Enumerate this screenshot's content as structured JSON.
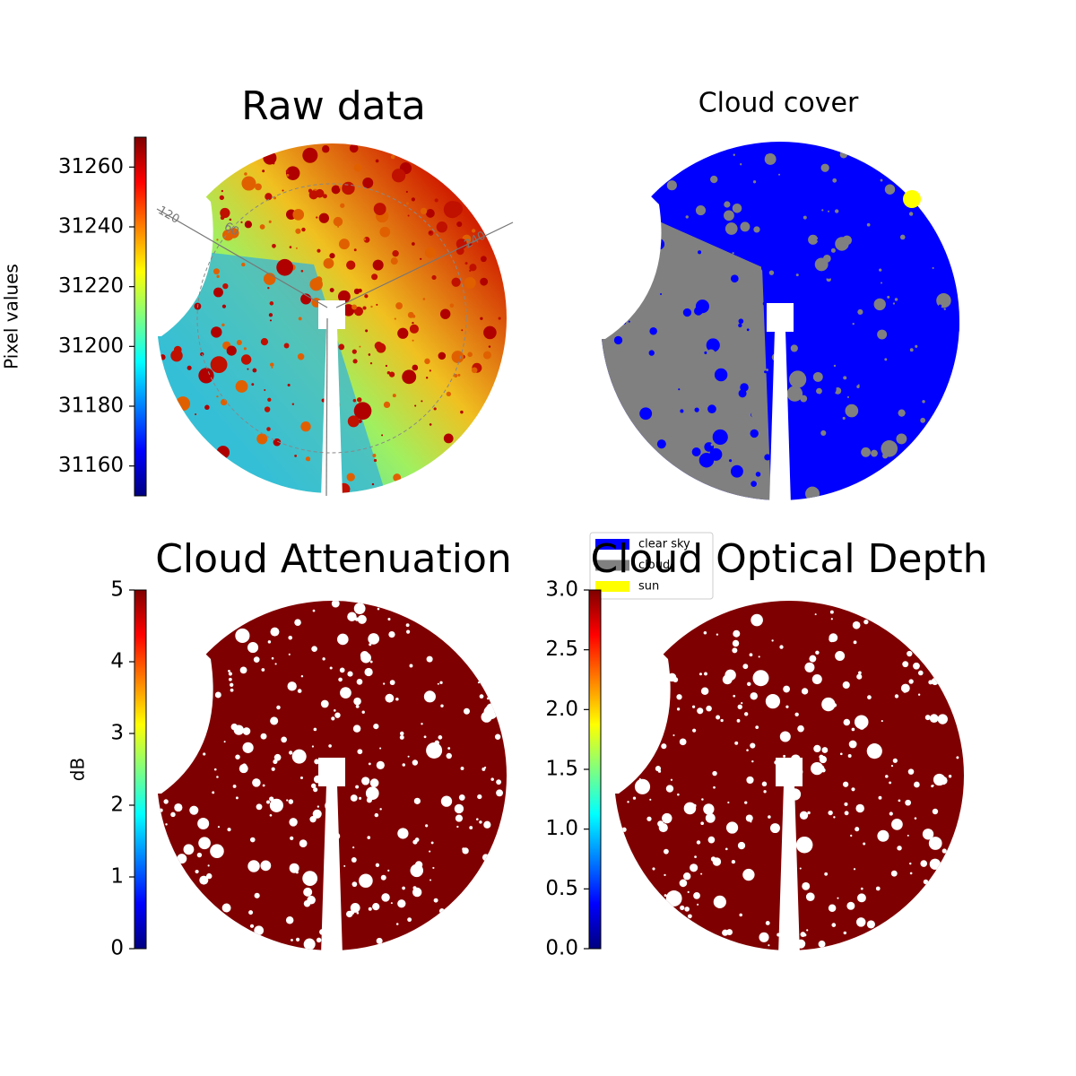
{
  "chart_data": [
    {
      "type": "image",
      "title": "Raw data",
      "colormap": "jet",
      "colorbar": {
        "label": "Pixel values",
        "lim": [
          31150,
          31270
        ],
        "ticks": [
          31160,
          31180,
          31200,
          31220,
          31240,
          31260
        ]
      },
      "annotations": [
        "120",
        "60",
        "240"
      ]
    },
    {
      "type": "image",
      "title": "Cloud cover",
      "legend": [
        {
          "name": "clear sky",
          "color": "#0000ff"
        },
        {
          "name": "cloud",
          "color": "#808080"
        },
        {
          "name": "sun",
          "color": "#ffff00"
        }
      ]
    },
    {
      "type": "image",
      "title": "Cloud Attenuation",
      "colormap": "jet",
      "colorbar": {
        "label": "dB",
        "lim": [
          0,
          5
        ],
        "ticks": [
          0,
          1,
          2,
          3,
          4,
          5
        ]
      }
    },
    {
      "type": "image",
      "title": "Cloud Optical Depth",
      "colormap": "jet",
      "colorbar": {
        "lim": [
          0,
          3
        ],
        "ticks": [
          {
            "value": 0,
            "label": "0.0"
          },
          0.5,
          {
            "value": 1,
            "label": "1.0"
          },
          1.5,
          {
            "value": 2,
            "label": "2.0"
          },
          2.5,
          {
            "value": 3,
            "label": "3.0"
          }
        ]
      }
    }
  ]
}
